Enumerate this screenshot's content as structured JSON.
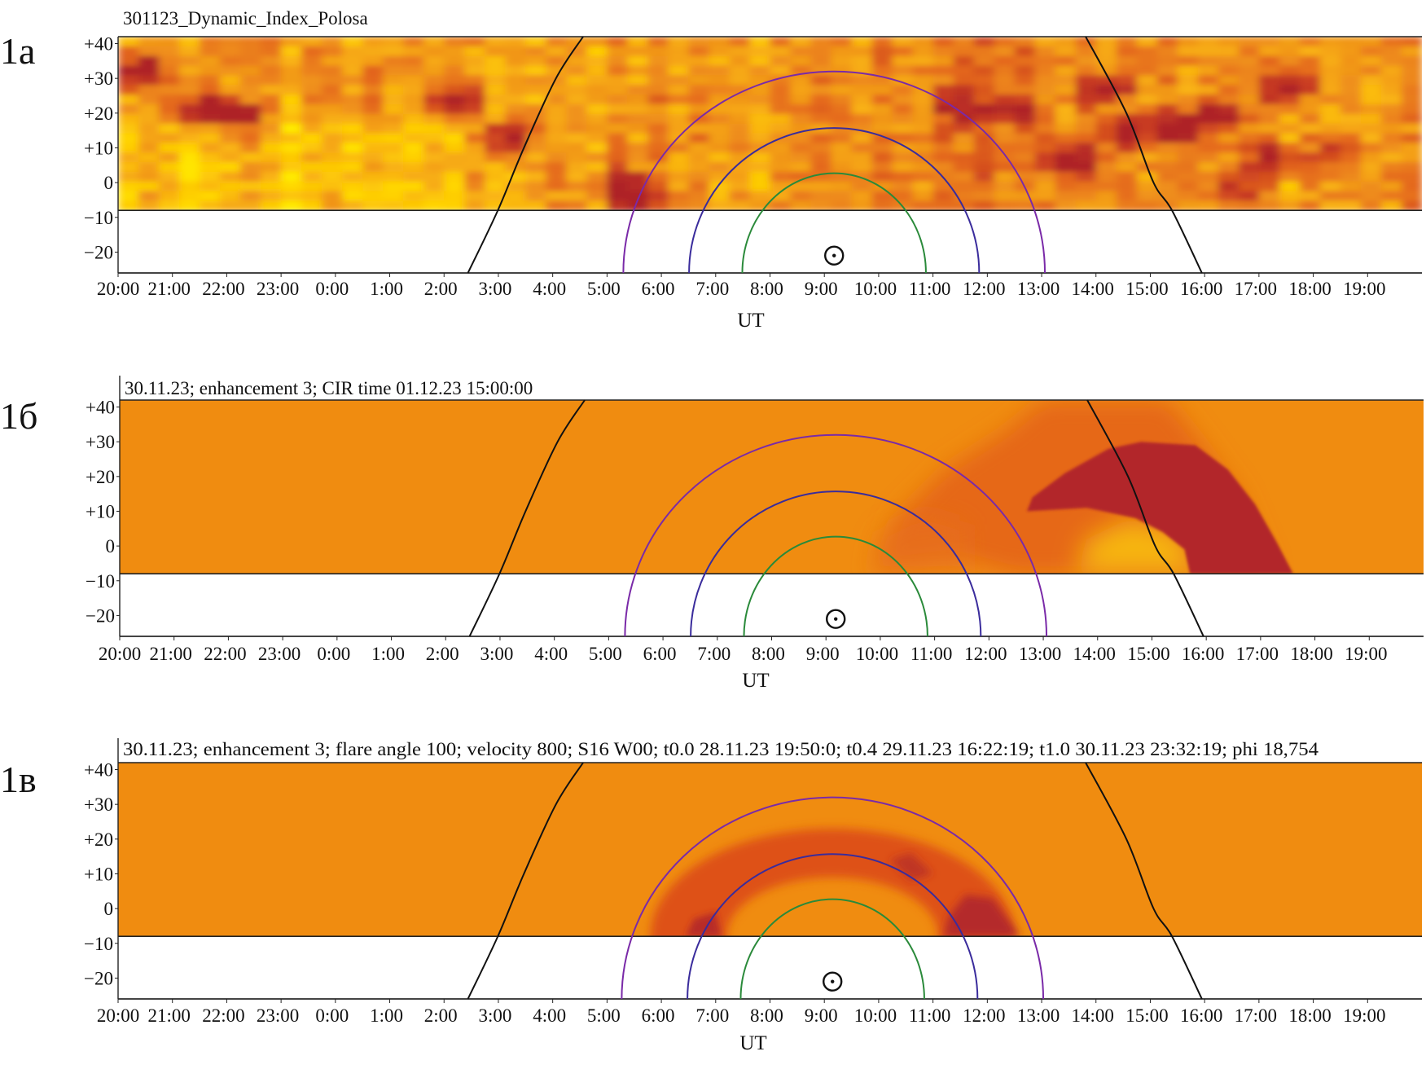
{
  "colors": {
    "heat_yellow": "#FFEA00",
    "heat_orange": "#F08C10",
    "heat_red": "#E0561A",
    "heat_darkred": "#B2262A",
    "horizon_curve": "#111111",
    "arc_outer": "#7A2AA8",
    "arc_middle": "#3A2C9C",
    "arc_inner": "#2A8A3A"
  },
  "chart_data": [
    {
      "id": "1a",
      "type": "heatmap",
      "panel_label": "1а",
      "title": "301123_Dynamic_Index_Polosa",
      "xlabel": "UT",
      "ylabel": "",
      "xlim_hours_from_20UT": [
        0,
        24
      ],
      "ylim": [
        -26,
        42
      ],
      "heatmap_lat_range": [
        -8,
        42
      ],
      "x_ticks": [
        "20:00",
        "21:00",
        "22:00",
        "23:00",
        "0:00",
        "1:00",
        "2:00",
        "3:00",
        "4:00",
        "5:00",
        "6:00",
        "7:00",
        "8:00",
        "9:00",
        "10:00",
        "11:00",
        "12:00",
        "13:00",
        "14:00",
        "15:00",
        "16:00",
        "17:00",
        "18:00",
        "19:00"
      ],
      "y_ticks": [
        {
          "v": 40,
          "label": "+40"
        },
        {
          "v": 30,
          "label": "+30"
        },
        {
          "v": 20,
          "label": "+20"
        },
        {
          "v": 10,
          "label": "+10"
        },
        {
          "v": 0,
          "label": "0"
        },
        {
          "v": -10,
          "label": "−10"
        },
        {
          "v": -20,
          "label": "−20"
        }
      ],
      "heatmap_kind": "noisy",
      "hotspots": [
        [
          0.4,
          32,
          1.0
        ],
        [
          1.6,
          21,
          0.9
        ],
        [
          2.2,
          18,
          0.7
        ],
        [
          6.2,
          24,
          0.75
        ],
        [
          7.2,
          13,
          0.8
        ],
        [
          9.5,
          -5,
          0.85
        ],
        [
          9.3,
          0,
          0.7
        ],
        [
          17.5,
          6,
          1.0
        ],
        [
          18.6,
          14,
          0.85
        ],
        [
          19.6,
          16,
          0.95
        ],
        [
          21.5,
          28,
          0.95
        ],
        [
          20.3,
          20,
          0.6
        ],
        [
          18.2,
          27,
          0.7
        ],
        [
          21.2,
          7,
          0.7
        ],
        [
          22.4,
          9,
          0.6
        ],
        [
          20.5,
          -2,
          0.6
        ],
        [
          15.5,
          22,
          0.6
        ],
        [
          16.5,
          21,
          0.65
        ]
      ],
      "regions": [],
      "curves": [
        {
          "name": "horizon-left",
          "color": "#111111",
          "points": [
            [
              6.44,
              -26
            ],
            [
              6.99,
              -8
            ],
            [
              7.47,
              10
            ],
            [
              8.06,
              30
            ],
            [
              8.56,
              42
            ]
          ]
        },
        {
          "name": "horizon-right",
          "color": "#111111",
          "points": [
            [
              17.81,
              42
            ],
            [
              18.56,
              20
            ],
            [
              19.06,
              0
            ],
            [
              19.4,
              -8
            ],
            [
              19.95,
              -26
            ]
          ]
        }
      ],
      "arcs": [
        {
          "name": "outer",
          "color": "#7A2AA8",
          "center_h": 13.18,
          "half_width_h": 3.88,
          "peak_deg": 32
        },
        {
          "name": "middle",
          "color": "#3A2C9C",
          "center_h": 13.18,
          "half_width_h": 2.67,
          "peak_deg": 15.7
        },
        {
          "name": "inner",
          "color": "#2A8A3A",
          "center_h": 13.18,
          "half_width_h": 1.69,
          "peak_deg": 2.7
        }
      ],
      "sun_marker": {
        "h": 13.18,
        "deg": -21
      }
    },
    {
      "id": "1b",
      "type": "heatmap",
      "panel_label": "1б",
      "title": "30.11.23; enhancement 3; CIR time 01.12.23 15:00:00",
      "xlabel": "UT",
      "ylabel": "",
      "xlim_hours_from_20UT": [
        0,
        24
      ],
      "ylim": [
        -26,
        42
      ],
      "heatmap_lat_range": [
        -8,
        42
      ],
      "x_ticks": [
        "20:00",
        "21:00",
        "22:00",
        "23:00",
        "0:00",
        "1:00",
        "2:00",
        "3:00",
        "4:00",
        "5:00",
        "6:00",
        "7:00",
        "8:00",
        "9:00",
        "10:00",
        "11:00",
        "12:00",
        "13:00",
        "14:00",
        "15:00",
        "16:00",
        "17:00",
        "18:00",
        "19:00"
      ],
      "y_ticks": [
        {
          "v": 40,
          "label": "+40"
        },
        {
          "v": 30,
          "label": "+30"
        },
        {
          "v": 20,
          "label": "+20"
        },
        {
          "v": 10,
          "label": "+10"
        },
        {
          "v": 0,
          "label": "0"
        },
        {
          "v": -10,
          "label": "−10"
        },
        {
          "v": -20,
          "label": "−20"
        }
      ],
      "heatmap_kind": "model",
      "hotspots": [],
      "regions": [
        {
          "level": "enhanced",
          "color": "#E4621A",
          "blur": 14,
          "opacity": 0.85,
          "polygon": [
            [
              14.0,
              -6
            ],
            [
              14.3,
              8
            ],
            [
              15.2,
              22
            ],
            [
              16.3,
              33
            ],
            [
              17.0,
              42
            ],
            [
              19.3,
              42
            ],
            [
              19.9,
              30
            ],
            [
              20.6,
              15
            ],
            [
              21.2,
              -8
            ],
            [
              16.5,
              -8
            ],
            [
              15.3,
              -3
            ]
          ]
        },
        {
          "level": "weak",
          "color": "#E8701A",
          "blur": 14,
          "opacity": 0.6,
          "polygon": [
            [
              13.8,
              -8
            ],
            [
              14.0,
              4
            ],
            [
              14.8,
              10
            ],
            [
              15.6,
              6
            ],
            [
              15.6,
              -8
            ]
          ]
        },
        {
          "level": "glow",
          "color": "#F8BE10",
          "blur": 16,
          "opacity": 0.9,
          "polygon": [
            [
              17.6,
              -8
            ],
            [
              17.8,
              2
            ],
            [
              18.6,
              8
            ],
            [
              19.5,
              4
            ],
            [
              19.9,
              -8
            ]
          ]
        },
        {
          "level": "max",
          "color": "#B2262A",
          "blur": 1.5,
          "opacity": 1,
          "polygon": [
            [
              16.7,
              10
            ],
            [
              16.8,
              14
            ],
            [
              17.4,
              21
            ],
            [
              18.2,
              28
            ],
            [
              18.8,
              30
            ],
            [
              19.8,
              29
            ],
            [
              20.4,
              22
            ],
            [
              20.9,
              12
            ],
            [
              21.3,
              1
            ],
            [
              21.6,
              -8
            ],
            [
              19.7,
              -8
            ],
            [
              19.6,
              -1
            ],
            [
              19.2,
              4
            ],
            [
              18.7,
              8
            ],
            [
              17.8,
              11
            ]
          ]
        }
      ],
      "curves": [
        {
          "name": "horizon-left",
          "color": "#111111",
          "points": [
            [
              6.44,
              -26
            ],
            [
              6.99,
              -8
            ],
            [
              7.47,
              10
            ],
            [
              8.06,
              30
            ],
            [
              8.56,
              42
            ]
          ]
        },
        {
          "name": "horizon-right",
          "color": "#111111",
          "points": [
            [
              17.81,
              42
            ],
            [
              18.56,
              20
            ],
            [
              19.06,
              0
            ],
            [
              19.4,
              -8
            ],
            [
              19.95,
              -26
            ]
          ]
        }
      ],
      "arcs": [
        {
          "name": "outer",
          "color": "#7A2AA8",
          "center_h": 13.18,
          "half_width_h": 3.88,
          "peak_deg": 32
        },
        {
          "name": "middle",
          "color": "#3A2C9C",
          "center_h": 13.18,
          "half_width_h": 2.67,
          "peak_deg": 15.7
        },
        {
          "name": "inner",
          "color": "#2A8A3A",
          "center_h": 13.18,
          "half_width_h": 1.69,
          "peak_deg": 2.7
        }
      ],
      "sun_marker": {
        "h": 13.18,
        "deg": -21
      }
    },
    {
      "id": "1c",
      "type": "heatmap",
      "panel_label": "1в",
      "title": "30.11.23; enhancement 3; flare angle 100; velocity 800; S16 W00; t0.0 28.11.23 19:50:0; t0.4 29.11.23 16:22:19; t1.0 30.11.23 23:32:19; phi 18,754",
      "xlabel": "UT",
      "ylabel": "",
      "xlim_hours_from_20UT": [
        0,
        24
      ],
      "ylim": [
        -26,
        42
      ],
      "heatmap_lat_range": [
        -8,
        42
      ],
      "x_ticks": [
        "20:00",
        "21:00",
        "22:00",
        "23:00",
        "0:00",
        "1:00",
        "2:00",
        "3:00",
        "4:00",
        "5:00",
        "6:00",
        "7:00",
        "8:00",
        "9:00",
        "10:00",
        "11:00",
        "12:00",
        "13:00",
        "14:00",
        "15:00",
        "16:00",
        "17:00",
        "18:00",
        "19:00"
      ],
      "y_ticks": [
        {
          "v": 40,
          "label": "+40"
        },
        {
          "v": 30,
          "label": "+30"
        },
        {
          "v": 20,
          "label": "+20"
        },
        {
          "v": 10,
          "label": "+10"
        },
        {
          "v": 0,
          "label": "0"
        },
        {
          "v": -10,
          "label": "−10"
        },
        {
          "v": -20,
          "label": "−20"
        }
      ],
      "heatmap_kind": "model",
      "hotspots": [],
      "regions": [
        {
          "level": "enhanced",
          "color": "#DC4A1A",
          "blur": 6,
          "opacity": 0.9,
          "crescent": {
            "center_h": 13.15,
            "base_deg": -8,
            "outer_hw": 3.35,
            "outer_h": 31,
            "inner_hw": 1.95,
            "inner_h": 17
          }
        },
        {
          "level": "max",
          "color": "#B2262A",
          "blur": 5,
          "opacity": 0.95,
          "polygon": [
            [
              15.2,
              -8
            ],
            [
              15.3,
              -2
            ],
            [
              15.6,
              4
            ],
            [
              16.1,
              3
            ],
            [
              16.6,
              -8
            ]
          ]
        },
        {
          "level": "max",
          "color": "#B2262A",
          "blur": 5,
          "opacity": 0.7,
          "polygon": [
            [
              14.2,
              14
            ],
            [
              14.6,
              16
            ],
            [
              15.0,
              10
            ],
            [
              14.6,
              8
            ]
          ]
        },
        {
          "level": "max",
          "color": "#B2262A",
          "blur": 4,
          "opacity": 0.85,
          "polygon": [
            [
              10.45,
              -8
            ],
            [
              10.6,
              -3
            ],
            [
              11.0,
              -1
            ],
            [
              11.1,
              -8
            ]
          ]
        }
      ],
      "curves": [
        {
          "name": "horizon-left",
          "color": "#111111",
          "points": [
            [
              6.44,
              -26
            ],
            [
              6.99,
              -8
            ],
            [
              7.47,
              10
            ],
            [
              8.06,
              30
            ],
            [
              8.56,
              42
            ]
          ]
        },
        {
          "name": "horizon-right",
          "color": "#111111",
          "points": [
            [
              17.81,
              42
            ],
            [
              18.56,
              20
            ],
            [
              19.06,
              0
            ],
            [
              19.4,
              -8
            ],
            [
              19.95,
              -26
            ]
          ]
        }
      ],
      "arcs": [
        {
          "name": "outer",
          "color": "#7A2AA8",
          "center_h": 13.15,
          "half_width_h": 3.88,
          "peak_deg": 32
        },
        {
          "name": "middle",
          "color": "#3A2C9C",
          "center_h": 13.15,
          "half_width_h": 2.67,
          "peak_deg": 15.7
        },
        {
          "name": "inner",
          "color": "#2A8A3A",
          "center_h": 13.15,
          "half_width_h": 1.69,
          "peak_deg": 2.7
        }
      ],
      "sun_marker": {
        "h": 13.15,
        "deg": -21
      }
    }
  ]
}
